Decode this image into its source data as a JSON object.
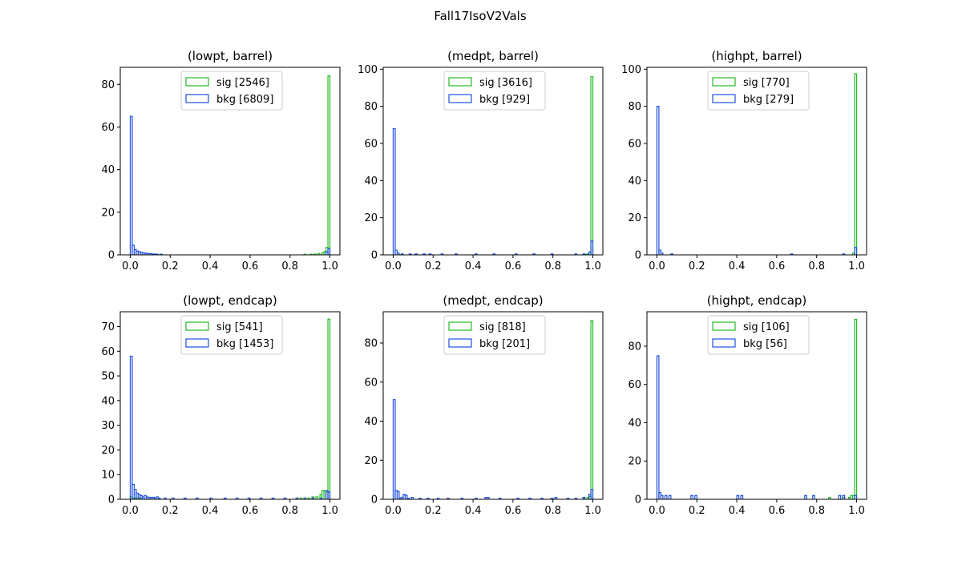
{
  "figure": {
    "suptitle": "Fall17IsoV2Vals"
  },
  "colors": {
    "sig": "#22bb22",
    "bkg": "#1f4fdd",
    "axis": "#000000",
    "legend_border": "#cccccc"
  },
  "chart_data": [
    {
      "type": "histogram",
      "title": "(lowpt, barrel)",
      "xlim": [
        -0.05,
        1.05
      ],
      "ylim": [
        0,
        88
      ],
      "xticks": [
        "0.0",
        "0.2",
        "0.4",
        "0.6",
        "0.8",
        "1.0"
      ],
      "xtick_values": [
        0,
        0.2,
        0.4,
        0.6,
        0.8,
        1.0
      ],
      "yticks": [
        0,
        20,
        40,
        60,
        80
      ],
      "legend_location": "upper center",
      "series": [
        {
          "name": "sig",
          "label": "sig [2546]",
          "bin_centers": [
            0.875,
            0.905,
            0.925,
            0.945,
            0.965,
            0.975,
            0.985,
            0.995
          ],
          "values": [
            0.3,
            0.3,
            0.4,
            0.6,
            1.0,
            1.5,
            3.5,
            84
          ]
        },
        {
          "name": "bkg",
          "label": "bkg [6809]",
          "bin_centers": [
            0.005,
            0.015,
            0.025,
            0.035,
            0.045,
            0.055,
            0.065,
            0.075,
            0.085,
            0.095,
            0.105,
            0.115,
            0.125,
            0.135,
            0.155,
            0.985,
            0.995
          ],
          "values": [
            65,
            4.5,
            2.5,
            1.8,
            1.5,
            1.2,
            1.0,
            0.8,
            0.7,
            0.6,
            0.5,
            0.4,
            0.4,
            0.3,
            0.3,
            1.5,
            3.0
          ]
        }
      ]
    },
    {
      "type": "histogram",
      "title": "(medpt, barrel)",
      "xlim": [
        -0.05,
        1.05
      ],
      "ylim": [
        0,
        101
      ],
      "xticks": [
        "0.0",
        "0.2",
        "0.4",
        "0.6",
        "0.8",
        "1.0"
      ],
      "xtick_values": [
        0,
        0.2,
        0.4,
        0.6,
        0.8,
        1.0
      ],
      "yticks": [
        0,
        20,
        40,
        60,
        80,
        100
      ],
      "legend_location": "upper center",
      "series": [
        {
          "name": "sig",
          "label": "sig [3616]",
          "bin_centers": [
            0.965,
            0.975,
            0.985,
            0.995
          ],
          "values": [
            0.3,
            0.5,
            1.5,
            96
          ]
        },
        {
          "name": "bkg",
          "label": "bkg [929]",
          "bin_centers": [
            0.005,
            0.015,
            0.025,
            0.045,
            0.085,
            0.115,
            0.155,
            0.185,
            0.245,
            0.315,
            0.415,
            0.505,
            0.615,
            0.705,
            0.795,
            0.915,
            0.955,
            0.985,
            0.995
          ],
          "values": [
            68,
            2.5,
            1.0,
            0.5,
            0.5,
            0.5,
            0.5,
            0.5,
            0.5,
            0.5,
            0.5,
            0.5,
            0.5,
            0.5,
            0.5,
            0.5,
            0.5,
            1.5,
            7.5
          ]
        }
      ]
    },
    {
      "type": "histogram",
      "title": "(highpt, barrel)",
      "xlim": [
        -0.05,
        1.05
      ],
      "ylim": [
        0,
        101
      ],
      "xticks": [
        "0.0",
        "0.2",
        "0.4",
        "0.6",
        "0.8",
        "1.0"
      ],
      "xtick_values": [
        0,
        0.2,
        0.4,
        0.6,
        0.8,
        1.0
      ],
      "yticks": [
        0,
        20,
        40,
        60,
        80,
        100
      ],
      "legend_location": "upper center",
      "series": [
        {
          "name": "sig",
          "label": "sig [770]",
          "bin_centers": [
            0.985,
            0.995
          ],
          "values": [
            1.0,
            97.5
          ]
        },
        {
          "name": "bkg",
          "label": "bkg [279]",
          "bin_centers": [
            0.005,
            0.015,
            0.025,
            0.075,
            0.675,
            0.935,
            0.995
          ],
          "values": [
            80,
            2.5,
            1.0,
            0.5,
            0.5,
            0.5,
            4.0
          ]
        }
      ]
    },
    {
      "type": "histogram",
      "title": "(lowpt, endcap)",
      "xlim": [
        -0.05,
        1.05
      ],
      "ylim": [
        0,
        76
      ],
      "xticks": [
        "0.0",
        "0.2",
        "0.4",
        "0.6",
        "0.8",
        "1.0"
      ],
      "xtick_values": [
        0,
        0.2,
        0.4,
        0.6,
        0.8,
        1.0
      ],
      "yticks": [
        0,
        10,
        20,
        30,
        40,
        50,
        60,
        70
      ],
      "legend_location": "upper center",
      "series": [
        {
          "name": "sig",
          "label": "sig [541]",
          "bin_centers": [
            0.005,
            0.015,
            0.025,
            0.035,
            0.045,
            0.055,
            0.835,
            0.855,
            0.875,
            0.895,
            0.915,
            0.935,
            0.955,
            0.965,
            0.975,
            0.985,
            0.995
          ],
          "values": [
            1.0,
            0.5,
            0.5,
            0.5,
            0.5,
            0.5,
            0.5,
            0.5,
            0.5,
            0.5,
            1.0,
            1.0,
            2.0,
            3.5,
            3.5,
            3.0,
            73
          ]
        },
        {
          "name": "bkg",
          "label": "bkg [1453]",
          "bin_centers": [
            0.005,
            0.015,
            0.025,
            0.035,
            0.045,
            0.055,
            0.065,
            0.075,
            0.085,
            0.095,
            0.105,
            0.115,
            0.125,
            0.135,
            0.145,
            0.175,
            0.215,
            0.275,
            0.335,
            0.405,
            0.475,
            0.535,
            0.595,
            0.655,
            0.715,
            0.775,
            0.835,
            0.875,
            0.915,
            0.955,
            0.985,
            0.995
          ],
          "values": [
            58,
            6.0,
            4.0,
            2.5,
            2.0,
            1.5,
            1.0,
            1.5,
            1.0,
            0.8,
            0.7,
            0.8,
            0.5,
            1.0,
            0.5,
            0.5,
            0.5,
            0.5,
            0.5,
            0.5,
            0.5,
            0.5,
            0.5,
            0.5,
            0.5,
            0.5,
            0.5,
            0.5,
            0.5,
            0.5,
            3.5,
            3.0
          ]
        }
      ]
    },
    {
      "type": "histogram",
      "title": "(medpt, endcap)",
      "xlim": [
        -0.05,
        1.05
      ],
      "ylim": [
        0,
        96
      ],
      "xticks": [
        "0.0",
        "0.2",
        "0.4",
        "0.6",
        "0.8",
        "1.0"
      ],
      "xtick_values": [
        0,
        0.2,
        0.4,
        0.6,
        0.8,
        1.0
      ],
      "yticks": [
        0,
        20,
        40,
        60,
        80
      ],
      "legend_location": "upper center",
      "series": [
        {
          "name": "sig",
          "label": "sig [818]",
          "bin_centers": [
            0.955,
            0.975,
            0.985,
            0.995
          ],
          "values": [
            0.5,
            1.0,
            1.5,
            91.5
          ]
        },
        {
          "name": "bkg",
          "label": "bkg [201]",
          "bin_centers": [
            0.005,
            0.015,
            0.025,
            0.035,
            0.045,
            0.055,
            0.065,
            0.075,
            0.095,
            0.135,
            0.175,
            0.225,
            0.275,
            0.345,
            0.415,
            0.465,
            0.475,
            0.535,
            0.625,
            0.685,
            0.745,
            0.795,
            0.815,
            0.875,
            0.915,
            0.955,
            0.985,
            0.995
          ],
          "values": [
            51,
            4.5,
            4.0,
            0.5,
            1.0,
            2.5,
            2.0,
            0.5,
            1.0,
            0.5,
            0.5,
            0.5,
            0.5,
            0.5,
            0.5,
            1.0,
            1.0,
            0.5,
            0.5,
            0.5,
            0.5,
            0.5,
            1.0,
            0.5,
            0.5,
            1.0,
            2.5,
            5.0
          ]
        }
      ]
    },
    {
      "type": "histogram",
      "title": "(highpt, endcap)",
      "xlim": [
        -0.05,
        1.05
      ],
      "ylim": [
        0,
        98
      ],
      "xticks": [
        "0.0",
        "0.2",
        "0.4",
        "0.6",
        "0.8",
        "1.0"
      ],
      "xtick_values": [
        0,
        0.2,
        0.4,
        0.6,
        0.8,
        1.0
      ],
      "yticks": [
        0,
        20,
        40,
        60,
        80
      ],
      "legend_location": "upper center",
      "series": [
        {
          "name": "sig",
          "label": "sig [106]",
          "bin_centers": [
            0.865,
            0.935,
            0.965,
            0.975,
            0.985,
            0.995
          ],
          "values": [
            1.0,
            1.0,
            1.0,
            2.0,
            2.0,
            94
          ]
        },
        {
          "name": "bkg",
          "label": "bkg [56]",
          "bin_centers": [
            0.005,
            0.015,
            0.025,
            0.045,
            0.065,
            0.175,
            0.195,
            0.405,
            0.425,
            0.745,
            0.785,
            0.915,
            0.935,
            0.995
          ],
          "values": [
            75,
            3.5,
            2.0,
            2.0,
            2.0,
            2.0,
            2.0,
            2.0,
            2.0,
            2.0,
            2.0,
            2.0,
            2.0,
            2.0
          ]
        }
      ]
    }
  ]
}
